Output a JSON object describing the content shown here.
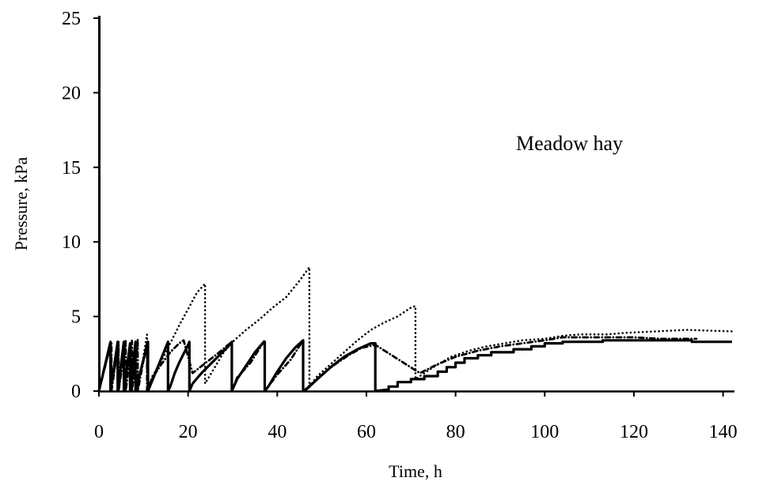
{
  "chart_data": {
    "type": "line",
    "title": "",
    "xlabel": "Time, h",
    "ylabel": "Pressure, kPa",
    "xlim": [
      0,
      140
    ],
    "ylim": [
      0,
      25
    ],
    "x_ticks": [
      0,
      20,
      40,
      60,
      80,
      100,
      120,
      140
    ],
    "y_ticks": [
      0,
      5,
      10,
      15,
      20,
      25
    ],
    "grid": false,
    "annotation": "Meadow hay",
    "series": [
      {
        "style": "solid",
        "points": [
          [
            0,
            0
          ],
          [
            2.6,
            3.3
          ],
          [
            2.6,
            0
          ],
          [
            4.2,
            3.3
          ],
          [
            4.2,
            0
          ],
          [
            5.6,
            3.3
          ],
          [
            5.6,
            0
          ],
          [
            7,
            3.2
          ],
          [
            7,
            0
          ],
          [
            8.2,
            3.3
          ],
          [
            8.2,
            0
          ],
          [
            11,
            3.3
          ],
          [
            11,
            0
          ],
          [
            15.5,
            3.3
          ],
          [
            15.5,
            0
          ],
          [
            16,
            0.3
          ],
          [
            17,
            1.2
          ],
          [
            18,
            1.9
          ],
          [
            19,
            2.5
          ],
          [
            20,
            3.1
          ],
          [
            20.3,
            3.3
          ],
          [
            20.3,
            0
          ],
          [
            21,
            0.5
          ],
          [
            23,
            1.2
          ],
          [
            25,
            1.8
          ],
          [
            27,
            2.4
          ],
          [
            29,
            3.0
          ],
          [
            29.8,
            3.3
          ],
          [
            29.8,
            0
          ],
          [
            31,
            0.8
          ],
          [
            33,
            1.7
          ],
          [
            35,
            2.6
          ],
          [
            37,
            3.3
          ],
          [
            37.2,
            3.3
          ],
          [
            37.2,
            0
          ],
          [
            38,
            0.3
          ],
          [
            40,
            1.3
          ],
          [
            42,
            2.2
          ],
          [
            44,
            2.9
          ],
          [
            45.8,
            3.4
          ],
          [
            45.8,
            0
          ],
          [
            46.5,
            0.1
          ],
          [
            49,
            0.8
          ],
          [
            52,
            1.6
          ],
          [
            55,
            2.3
          ],
          [
            58,
            2.8
          ],
          [
            61,
            3.2
          ],
          [
            62,
            3.2
          ],
          [
            62,
            0
          ],
          [
            65,
            0.1
          ],
          [
            65,
            0.3
          ],
          [
            67,
            0.3
          ],
          [
            67,
            0.6
          ],
          [
            70,
            0.6
          ],
          [
            70,
            0.8
          ],
          [
            73,
            0.8
          ],
          [
            73,
            1.0
          ],
          [
            76,
            1.0
          ],
          [
            76,
            1.3
          ],
          [
            78,
            1.3
          ],
          [
            78,
            1.6
          ],
          [
            80,
            1.6
          ],
          [
            80,
            1.9
          ],
          [
            82,
            1.9
          ],
          [
            82,
            2.2
          ],
          [
            85,
            2.2
          ],
          [
            85,
            2.4
          ],
          [
            88,
            2.4
          ],
          [
            88,
            2.6
          ],
          [
            93,
            2.6
          ],
          [
            93,
            2.8
          ],
          [
            97,
            2.8
          ],
          [
            97,
            3.0
          ],
          [
            100,
            3.0
          ],
          [
            100,
            3.2
          ],
          [
            104,
            3.2
          ],
          [
            104,
            3.3
          ],
          [
            113,
            3.3
          ],
          [
            113,
            3.4
          ],
          [
            133,
            3.4
          ],
          [
            133,
            3.3
          ],
          [
            142,
            3.3
          ]
        ]
      },
      {
        "style": "dotted",
        "points": [
          [
            0,
            0
          ],
          [
            2.8,
            3.3
          ],
          [
            2.8,
            0
          ],
          [
            4.4,
            3.4
          ],
          [
            4.4,
            0
          ],
          [
            6,
            3.4
          ],
          [
            6,
            0
          ],
          [
            7.4,
            3.4
          ],
          [
            7.4,
            0
          ],
          [
            8.7,
            3.5
          ],
          [
            8.7,
            0
          ],
          [
            10.8,
            3.8
          ],
          [
            10.8,
            0
          ],
          [
            12,
            1.0
          ],
          [
            14,
            2.0
          ],
          [
            16,
            3.2
          ],
          [
            18,
            4.4
          ],
          [
            20,
            5.5
          ],
          [
            22,
            6.6
          ],
          [
            23.8,
            7.2
          ],
          [
            23.8,
            0.5
          ],
          [
            26,
            1.6
          ],
          [
            28,
            2.6
          ],
          [
            30,
            3.3
          ],
          [
            33,
            4.1
          ],
          [
            36,
            4.8
          ],
          [
            39,
            5.6
          ],
          [
            42,
            6.3
          ],
          [
            45,
            7.4
          ],
          [
            47.2,
            8.3
          ],
          [
            47.2,
            0.3
          ],
          [
            49,
            1.0
          ],
          [
            52,
            1.8
          ],
          [
            55,
            2.6
          ],
          [
            58,
            3.4
          ],
          [
            61,
            4.1
          ],
          [
            64,
            4.6
          ],
          [
            67,
            5.0
          ],
          [
            70,
            5.6
          ],
          [
            71,
            5.7
          ],
          [
            71,
            0.8
          ],
          [
            75,
            1.6
          ],
          [
            79,
            2.3
          ],
          [
            83,
            2.7
          ],
          [
            87,
            3.0
          ],
          [
            91,
            3.2
          ],
          [
            95,
            3.4
          ],
          [
            100,
            3.5
          ],
          [
            104,
            3.7
          ],
          [
            108,
            3.8
          ],
          [
            114,
            3.8
          ],
          [
            118,
            3.9
          ],
          [
            125,
            4.0
          ],
          [
            132,
            4.1
          ],
          [
            142,
            4.0
          ]
        ]
      },
      {
        "style": "dashdot",
        "points": [
          [
            0,
            0
          ],
          [
            2.8,
            3.3
          ],
          [
            2.8,
            0
          ],
          [
            4.4,
            3.3
          ],
          [
            4.4,
            0
          ],
          [
            6,
            3.3
          ],
          [
            6,
            0
          ],
          [
            7.4,
            3.3
          ],
          [
            7.4,
            0
          ],
          [
            8.7,
            3.3
          ],
          [
            8.7,
            0
          ],
          [
            10.8,
            3.3
          ],
          [
            10.8,
            0
          ],
          [
            12,
            0.9
          ],
          [
            14,
            1.8
          ],
          [
            16,
            2.6
          ],
          [
            18,
            3.2
          ],
          [
            19,
            3.4
          ],
          [
            21,
            1.2
          ],
          [
            24,
            1.9
          ],
          [
            27,
            2.6
          ],
          [
            29.8,
            3.3
          ],
          [
            29.8,
            0
          ],
          [
            31,
            0.9
          ],
          [
            34,
            1.9
          ],
          [
            37.2,
            3.4
          ],
          [
            37.2,
            0
          ],
          [
            40,
            1.1
          ],
          [
            43,
            2.1
          ],
          [
            45.8,
            3.4
          ],
          [
            45.8,
            0
          ],
          [
            47,
            0.3
          ],
          [
            50,
            1.1
          ],
          [
            53,
            1.8
          ],
          [
            56,
            2.4
          ],
          [
            59,
            2.9
          ],
          [
            62,
            3.1
          ],
          [
            72,
            1.2
          ],
          [
            76,
            1.8
          ],
          [
            80,
            2.3
          ],
          [
            85,
            2.7
          ],
          [
            90,
            3.0
          ],
          [
            95,
            3.2
          ],
          [
            100,
            3.4
          ],
          [
            104,
            3.6
          ],
          [
            110,
            3.6
          ],
          [
            115,
            3.6
          ],
          [
            120,
            3.6
          ],
          [
            126,
            3.5
          ],
          [
            131,
            3.5
          ],
          [
            134,
            3.5
          ]
        ]
      }
    ]
  }
}
